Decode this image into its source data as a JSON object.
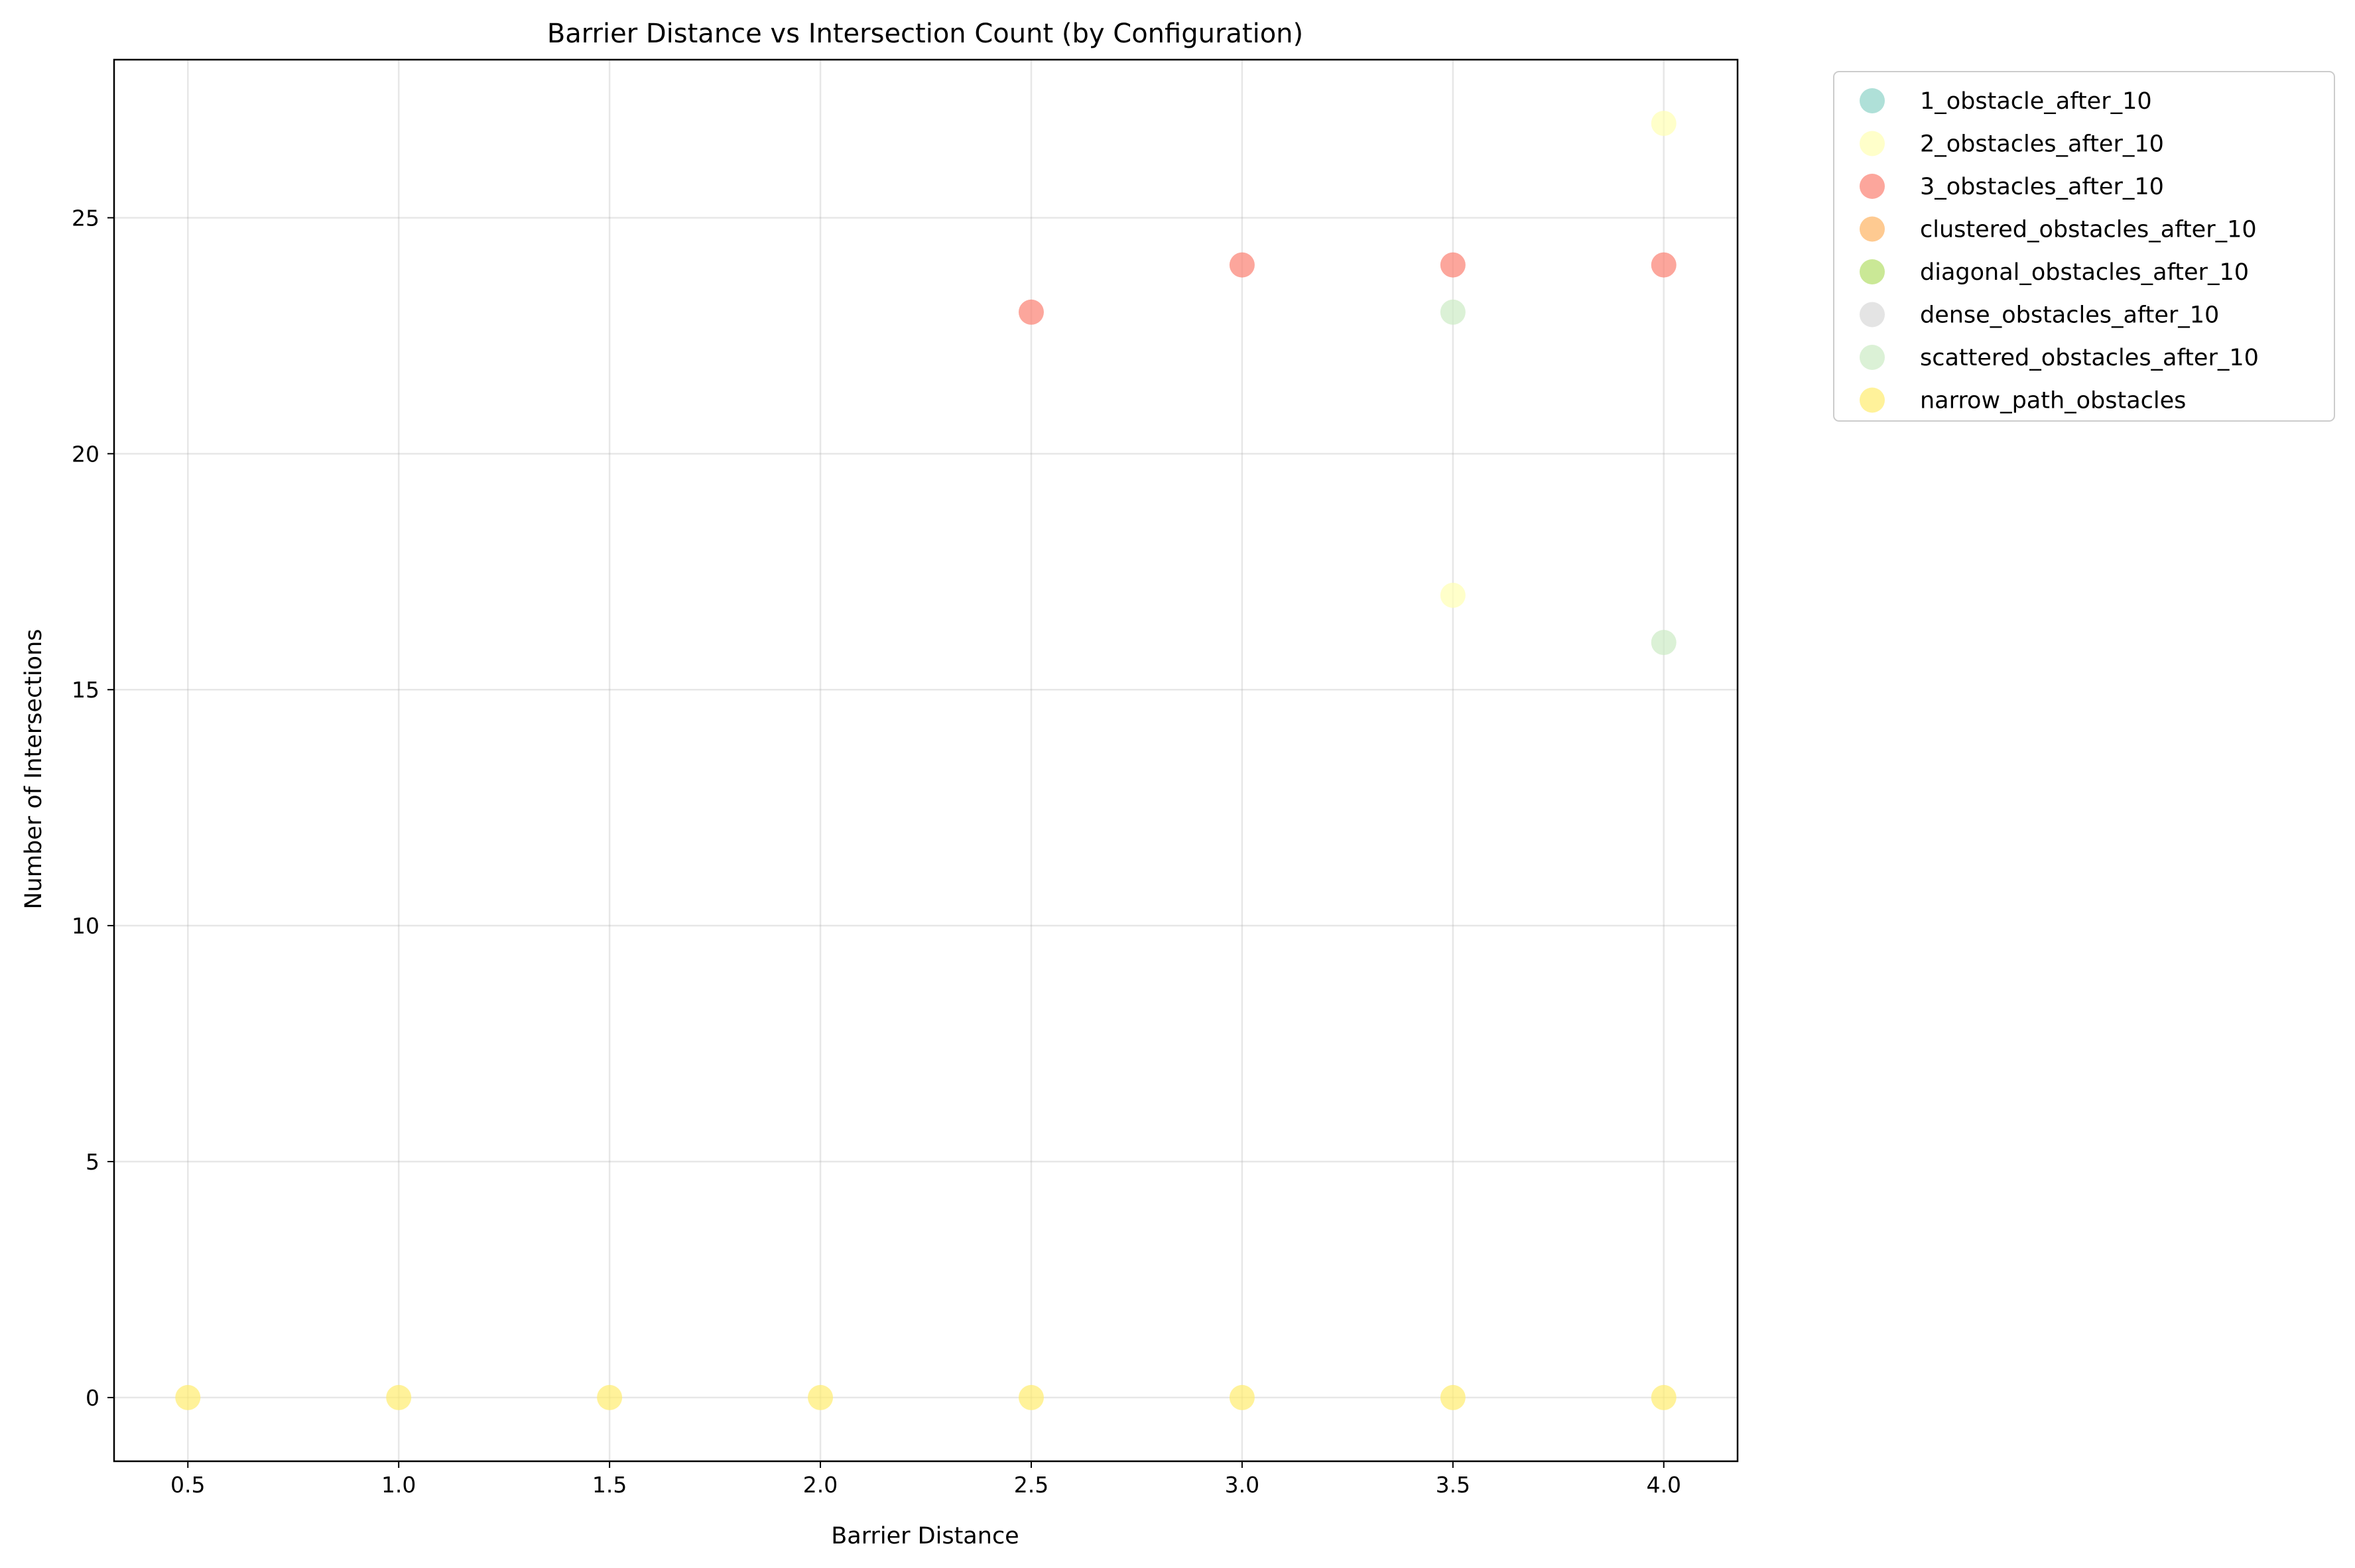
{
  "chart_data": {
    "type": "scatter",
    "title": "Barrier Distance vs Intersection Count (by Configuration)",
    "xlabel": "Barrier Distance",
    "ylabel": "Number of Intersections",
    "xlim": [
      0.325,
      4.175
    ],
    "ylim": [
      -1.35,
      28.35
    ],
    "xticks": [
      0.5,
      1.0,
      1.5,
      2.0,
      2.5,
      3.0,
      3.5,
      4.0
    ],
    "xtick_labels": [
      "0.5",
      "1.0",
      "1.5",
      "2.0",
      "2.5",
      "3.0",
      "3.5",
      "4.0"
    ],
    "yticks": [
      0,
      5,
      10,
      15,
      20,
      25
    ],
    "ytick_labels": [
      "0",
      "5",
      "10",
      "15",
      "20",
      "25"
    ],
    "grid": true,
    "legend_position": "outside-upper-right",
    "series": [
      {
        "name": "1_obstacle_after_10",
        "color": "#8dd3c7",
        "points": []
      },
      {
        "name": "2_obstacles_after_10",
        "color": "#ffffb3",
        "points": [
          [
            3.5,
            17
          ],
          [
            4.0,
            27
          ]
        ]
      },
      {
        "name": "3_obstacles_after_10",
        "color": "#fb8072",
        "points": [
          [
            2.5,
            23
          ],
          [
            3.0,
            24
          ],
          [
            3.5,
            24
          ],
          [
            4.0,
            24
          ]
        ]
      },
      {
        "name": "clustered_obstacles_after_10",
        "color": "#fdb462",
        "points": []
      },
      {
        "name": "diagonal_obstacles_after_10",
        "color": "#b3de69",
        "points": []
      },
      {
        "name": "dense_obstacles_after_10",
        "color": "#d9d9d9",
        "points": []
      },
      {
        "name": "scattered_obstacles_after_10",
        "color": "#ccebc5",
        "points": [
          [
            3.5,
            23
          ],
          [
            4.0,
            16
          ]
        ]
      },
      {
        "name": "narrow_path_obstacles",
        "color": "#ffed6f",
        "points": [
          [
            0.5,
            0
          ],
          [
            1.0,
            0
          ],
          [
            1.5,
            0
          ],
          [
            2.0,
            0
          ],
          [
            2.5,
            0
          ],
          [
            3.0,
            0
          ],
          [
            3.5,
            0
          ],
          [
            4.0,
            0
          ]
        ]
      }
    ]
  }
}
